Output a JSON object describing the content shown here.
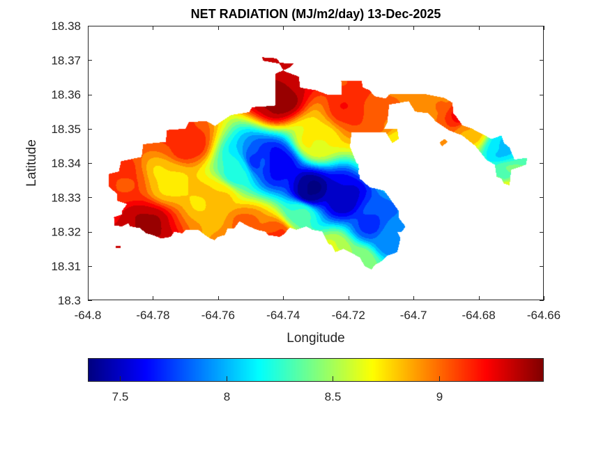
{
  "chart_data": {
    "type": "heatmap",
    "subtype": "filled-contour-map",
    "title": "NET RADIATION (MJ/m2/day) 13-Dec-2025",
    "xlabel": "Longitude",
    "ylabel": "Latitude",
    "xlim": [
      -64.8,
      -64.66
    ],
    "ylim": [
      18.3,
      18.38
    ],
    "xticks": [
      -64.8,
      -64.78,
      -64.76,
      -64.74,
      -64.72,
      -64.7,
      -64.68,
      -64.66
    ],
    "xtick_labels": [
      "-64.8",
      "-64.78",
      "-64.76",
      "-64.74",
      "-64.72",
      "-64.7",
      "-64.68",
      "-64.66"
    ],
    "yticks": [
      18.3,
      18.31,
      18.32,
      18.33,
      18.34,
      18.35,
      18.36,
      18.37,
      18.38
    ],
    "ytick_labels": [
      "18.3",
      "18.31",
      "18.32",
      "18.33",
      "18.34",
      "18.35",
      "18.36",
      "18.37",
      "18.38"
    ],
    "grid": false,
    "colormap": "jet",
    "colorbar": {
      "location": "bottom",
      "range": [
        7.35,
        9.49
      ],
      "ticks": [
        7.5,
        8,
        8.5,
        9
      ],
      "tick_labels": [
        "7.5",
        "8",
        "8.5",
        "9"
      ]
    },
    "value_range": [
      7.35,
      9.49
    ],
    "field_points": [
      {
        "lon": -64.732,
        "lat": 18.332,
        "value": 7.35,
        "note": "minimum (dark blue core)"
      },
      {
        "lon": -64.742,
        "lat": 18.34,
        "value": 7.6
      },
      {
        "lon": -64.748,
        "lat": 18.341,
        "value": 7.75
      },
      {
        "lon": -64.722,
        "lat": 18.33,
        "value": 7.5
      },
      {
        "lon": -64.713,
        "lat": 18.322,
        "value": 7.75
      },
      {
        "lon": -64.708,
        "lat": 18.318,
        "value": 7.9
      },
      {
        "lon": -64.754,
        "lat": 18.338,
        "value": 8.2
      },
      {
        "lon": -64.735,
        "lat": 18.325,
        "value": 8.3
      },
      {
        "lon": -64.775,
        "lat": 18.335,
        "value": 8.75
      },
      {
        "lon": -64.76,
        "lat": 18.33,
        "value": 8.8
      },
      {
        "lon": -64.73,
        "lat": 18.347,
        "value": 8.7
      },
      {
        "lon": -64.742,
        "lat": 18.359,
        "value": 9.45,
        "note": "maximum (northern peninsula)"
      },
      {
        "lon": -64.741,
        "lat": 18.368,
        "value": 9.35
      },
      {
        "lon": -64.782,
        "lat": 18.322,
        "value": 9.4,
        "note": "southwest maximum"
      },
      {
        "lon": -64.79,
        "lat": 18.335,
        "value": 9.1
      },
      {
        "lon": -64.77,
        "lat": 18.346,
        "value": 9.15
      },
      {
        "lon": -64.752,
        "lat": 18.322,
        "value": 9.0
      },
      {
        "lon": -64.742,
        "lat": 18.319,
        "value": 9.1
      },
      {
        "lon": -64.72,
        "lat": 18.356,
        "value": 9.15
      },
      {
        "lon": -64.71,
        "lat": 18.352,
        "value": 9.0
      },
      {
        "lon": -64.692,
        "lat": 18.358,
        "value": 8.95
      },
      {
        "lon": -64.686,
        "lat": 18.354,
        "value": 9.2
      },
      {
        "lon": -64.683,
        "lat": 18.35,
        "value": 8.85
      },
      {
        "lon": -64.673,
        "lat": 18.344,
        "value": 8.05
      },
      {
        "lon": -64.672,
        "lat": 18.337,
        "value": 8.35
      },
      {
        "lon": -64.671,
        "lat": 18.333,
        "value": 8.65
      },
      {
        "lon": -64.716,
        "lat": 18.311,
        "value": 8.45
      },
      {
        "lon": -64.724,
        "lat": 18.314,
        "value": 8.6
      },
      {
        "lon": -64.706,
        "lat": 18.345,
        "value": 8.7
      }
    ]
  }
}
